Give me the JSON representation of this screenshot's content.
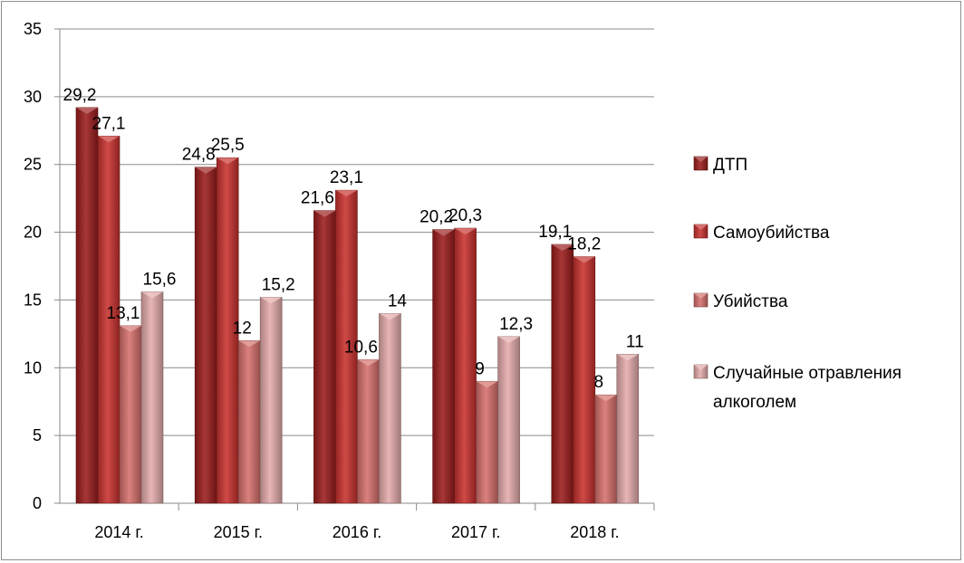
{
  "chart_data": {
    "type": "bar",
    "title": "",
    "xlabel": "",
    "ylabel": "",
    "ylim": [
      0,
      35
    ],
    "yticks": [
      0,
      5,
      10,
      15,
      20,
      25,
      30,
      35
    ],
    "grid": true,
    "legend_position": "right",
    "categories": [
      "2014 г.",
      "2015 г.",
      "2016 г.",
      "2017 г.",
      "2018 г."
    ],
    "series": [
      {
        "name": "ДТП",
        "values": [
          29.2,
          24.8,
          21.6,
          20.2,
          19.1
        ],
        "labels": [
          "29,2",
          "24,8",
          "21,6",
          "20,2",
          "19,1"
        ],
        "color": "#9b1c1c"
      },
      {
        "name": "Самоубийства",
        "values": [
          27.1,
          25.5,
          23.1,
          20.3,
          18.2
        ],
        "labels": [
          "27,1",
          "25,5",
          "23,1",
          "20,3",
          "18,2"
        ],
        "color": "#c8312e"
      },
      {
        "name": "Убийства",
        "values": [
          13.1,
          12,
          10.6,
          9,
          8
        ],
        "labels": [
          "13,1",
          "12",
          "10,6",
          "9",
          "8"
        ],
        "color": "#d6706c"
      },
      {
        "name": "Случайные отравления алкоголем",
        "legend_lines": [
          "Случайные отравления",
          "алкоголем"
        ],
        "values": [
          15.6,
          15.2,
          14,
          12.3,
          11
        ],
        "labels": [
          "15,6",
          "15,2",
          "14",
          "12,3",
          "11"
        ],
        "color": "#e5abab"
      }
    ]
  }
}
